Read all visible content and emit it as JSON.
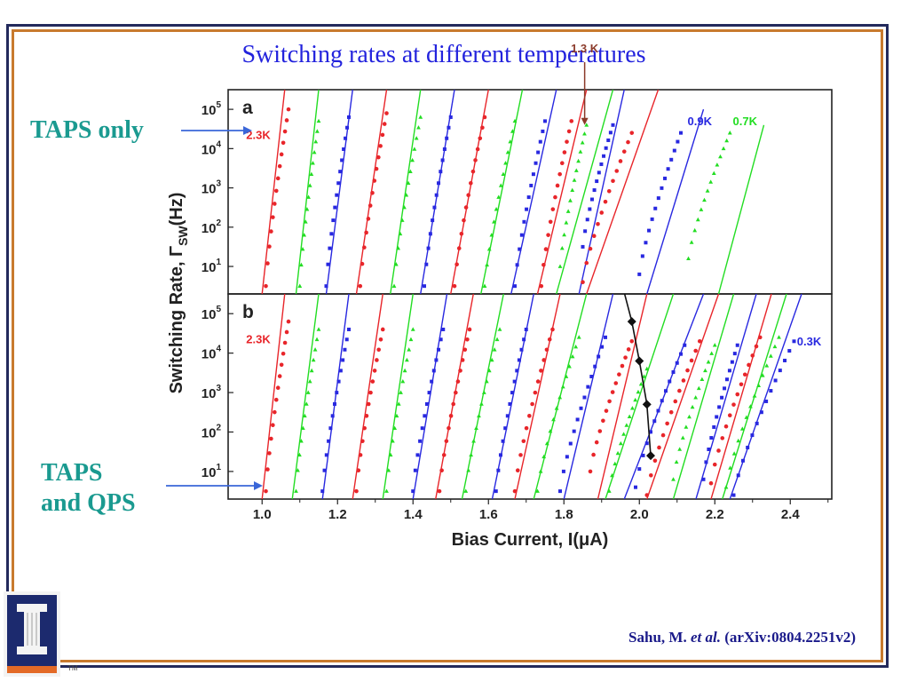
{
  "slide": {
    "title": "Switching rates at different temperatures",
    "taps_only": "TAPS only",
    "taps_qps_line1": "TAPS",
    "taps_qps_line2": "and QPS",
    "citation_author": "Sahu, M. ",
    "citation_etal": "et al.",
    "citation_ref": " (arXiv:0804.2251v2)",
    "tm": "TM"
  },
  "colors": {
    "red": "#e8252a",
    "green": "#22dd22",
    "blue": "#2828e0",
    "accent": "#2323dd",
    "teal": "#1a9a90"
  },
  "chart_data": {
    "type": "scatter",
    "xlabel": "Bias Current, I(μA)",
    "ylabel": "Switching Rate, Γ",
    "ylabel_sub": "SW",
    "ylabel_unit": "(Hz)",
    "xlim": [
      0.91,
      2.51
    ],
    "ylim_log10": [
      0.3,
      5.5
    ],
    "x_ticks": [
      "1.0",
      "1.2",
      "1.4",
      "1.6",
      "1.8",
      "2.0",
      "2.2",
      "2.4"
    ],
    "y_ticks": [
      {
        "base": "10",
        "exp": "1"
      },
      {
        "base": "10",
        "exp": "2"
      },
      {
        "base": "10",
        "exp": "3"
      },
      {
        "base": "10",
        "exp": "4"
      },
      {
        "base": "10",
        "exp": "5"
      }
    ],
    "panels": [
      {
        "label": "a",
        "annotations": [
          {
            "text": "2.3K",
            "color": "red",
            "x": 0.99,
            "logy": 4.25
          },
          {
            "text": "1.3 K",
            "color": "brown",
            "x": 1.855,
            "logy": 6.45
          },
          {
            "text": "0.9K",
            "color": "blue",
            "x": 2.16,
            "logy": 4.6
          },
          {
            "text": "0.7K",
            "color": "green",
            "x": 2.28,
            "logy": 4.6
          }
        ],
        "arrow_1_3K": {
          "x": 1.855,
          "logy_from": 6.2,
          "logy_to": 4.6
        },
        "curves": [
          {
            "color": "red",
            "data": [
              [
                1.01,
                0.5
              ],
              [
                1.07,
                5.0
              ]
            ],
            "fit": [
              [
                1.0,
                0.3
              ],
              [
                1.06,
                5.5
              ]
            ]
          },
          {
            "color": "green",
            "data": [
              [
                1.1,
                0.5
              ],
              [
                1.15,
                4.7
              ]
            ],
            "fit": [
              [
                1.09,
                0.3
              ],
              [
                1.15,
                5.5
              ]
            ]
          },
          {
            "color": "blue",
            "data": [
              [
                1.17,
                0.5
              ],
              [
                1.23,
                4.8
              ]
            ],
            "fit": [
              [
                1.17,
                0.3
              ],
              [
                1.24,
                5.5
              ]
            ]
          },
          {
            "color": "red",
            "data": [
              [
                1.26,
                0.5
              ],
              [
                1.33,
                4.9
              ]
            ],
            "fit": [
              [
                1.25,
                0.3
              ],
              [
                1.33,
                5.5
              ]
            ]
          },
          {
            "color": "green",
            "data": [
              [
                1.35,
                0.5
              ],
              [
                1.42,
                4.8
              ]
            ],
            "fit": [
              [
                1.34,
                0.3
              ],
              [
                1.42,
                5.5
              ]
            ]
          },
          {
            "color": "blue",
            "data": [
              [
                1.43,
                0.5
              ],
              [
                1.5,
                4.8
              ]
            ],
            "fit": [
              [
                1.42,
                0.3
              ],
              [
                1.51,
                5.5
              ]
            ]
          },
          {
            "color": "red",
            "data": [
              [
                1.51,
                0.5
              ],
              [
                1.59,
                4.8
              ]
            ],
            "fit": [
              [
                1.5,
                0.3
              ],
              [
                1.6,
                5.5
              ]
            ]
          },
          {
            "color": "green",
            "data": [
              [
                1.59,
                0.5
              ],
              [
                1.67,
                4.7
              ]
            ],
            "fit": [
              [
                1.58,
                0.3
              ],
              [
                1.69,
                5.5
              ]
            ]
          },
          {
            "color": "blue",
            "data": [
              [
                1.67,
                0.5
              ],
              [
                1.75,
                4.7
              ]
            ],
            "fit": [
              [
                1.66,
                0.3
              ],
              [
                1.78,
                5.5
              ]
            ]
          },
          {
            "color": "red",
            "data": [
              [
                1.74,
                0.5
              ],
              [
                1.82,
                4.7
              ]
            ],
            "fit": [
              [
                1.73,
                0.3
              ],
              [
                1.86,
                5.5
              ]
            ]
          },
          {
            "color": "green",
            "data": [
              [
                1.79,
                1.0
              ],
              [
                1.86,
                4.6
              ]
            ],
            "fit": [
              [
                1.78,
                0.3
              ],
              [
                1.93,
                5.5
              ]
            ]
          },
          {
            "color": "blue",
            "data": [
              [
                1.85,
                1.5
              ],
              [
                1.93,
                4.6
              ]
            ],
            "fit": [
              [
                1.84,
                0.3
              ],
              [
                1.96,
                5.5
              ]
            ]
          },
          {
            "color": "red",
            "data": [
              [
                1.85,
                0.6
              ],
              [
                1.98,
                4.4
              ]
            ],
            "fit": [
              [
                1.86,
                0.3
              ],
              [
                2.05,
                5.5
              ]
            ]
          },
          {
            "color": "blue",
            "data": [
              [
                2.0,
                0.8
              ],
              [
                2.11,
                4.4
              ]
            ],
            "fit": [
              [
                2.02,
                0.3
              ],
              [
                2.17,
                5.0
              ]
            ]
          },
          {
            "color": "green",
            "data": [
              [
                2.13,
                1.2
              ],
              [
                2.24,
                4.4
              ]
            ],
            "fit": [
              [
                2.21,
                0.3
              ],
              [
                2.33,
                4.6
              ]
            ]
          }
        ]
      },
      {
        "label": "b",
        "annotations": [
          {
            "text": "2.3K",
            "color": "red",
            "x": 0.99,
            "logy": 4.25
          },
          {
            "text": "0.3K",
            "color": "blue",
            "x": 2.45,
            "logy": 4.2
          }
        ],
        "black_curve": [
          [
            1.95,
            5.9
          ],
          [
            1.98,
            4.8
          ],
          [
            2.0,
            3.8
          ],
          [
            2.02,
            2.7
          ],
          [
            2.03,
            1.4
          ]
        ],
        "curves": [
          {
            "color": "red",
            "data": [
              [
                1.01,
                0.5
              ],
              [
                1.07,
                4.8
              ]
            ],
            "fit": [
              [
                1.0,
                0.3
              ],
              [
                1.06,
                5.5
              ]
            ]
          },
          {
            "color": "green",
            "data": [
              [
                1.09,
                0.5
              ],
              [
                1.15,
                4.6
              ]
            ],
            "fit": [
              [
                1.08,
                0.3
              ],
              [
                1.15,
                5.5
              ]
            ]
          },
          {
            "color": "blue",
            "data": [
              [
                1.16,
                0.5
              ],
              [
                1.23,
                4.6
              ]
            ],
            "fit": [
              [
                1.16,
                0.3
              ],
              [
                1.23,
                5.5
              ]
            ]
          },
          {
            "color": "red",
            "data": [
              [
                1.25,
                0.5
              ],
              [
                1.32,
                4.6
              ]
            ],
            "fit": [
              [
                1.24,
                0.3
              ],
              [
                1.32,
                5.5
              ]
            ]
          },
          {
            "color": "green",
            "data": [
              [
                1.33,
                0.5
              ],
              [
                1.4,
                4.6
              ]
            ],
            "fit": [
              [
                1.32,
                0.3
              ],
              [
                1.4,
                5.5
              ]
            ]
          },
          {
            "color": "blue",
            "data": [
              [
                1.4,
                0.5
              ],
              [
                1.48,
                4.6
              ]
            ],
            "fit": [
              [
                1.4,
                0.3
              ],
              [
                1.49,
                5.5
              ]
            ]
          },
          {
            "color": "red",
            "data": [
              [
                1.47,
                0.5
              ],
              [
                1.55,
                4.6
              ]
            ],
            "fit": [
              [
                1.46,
                0.3
              ],
              [
                1.56,
                5.5
              ]
            ]
          },
          {
            "color": "green",
            "data": [
              [
                1.54,
                0.5
              ],
              [
                1.63,
                4.6
              ]
            ],
            "fit": [
              [
                1.53,
                0.3
              ],
              [
                1.64,
                5.5
              ]
            ]
          },
          {
            "color": "blue",
            "data": [
              [
                1.62,
                0.5
              ],
              [
                1.7,
                4.6
              ]
            ],
            "fit": [
              [
                1.61,
                0.3
              ],
              [
                1.72,
                5.5
              ]
            ]
          },
          {
            "color": "red",
            "data": [
              [
                1.67,
                0.5
              ],
              [
                1.77,
                4.6
              ]
            ],
            "fit": [
              [
                1.67,
                0.3
              ],
              [
                1.79,
                5.5
              ]
            ]
          },
          {
            "color": "green",
            "data": [
              [
                1.73,
                0.5
              ],
              [
                1.84,
                4.4
              ]
            ],
            "fit": [
              [
                1.72,
                0.3
              ],
              [
                1.86,
                5.5
              ]
            ]
          },
          {
            "color": "blue",
            "data": [
              [
                1.79,
                0.5
              ],
              [
                1.91,
                4.4
              ]
            ],
            "fit": [
              [
                1.8,
                0.3
              ],
              [
                1.93,
                5.5
              ]
            ]
          },
          {
            "color": "red",
            "data": [
              [
                1.87,
                1.0
              ],
              [
                1.98,
                4.3
              ]
            ],
            "fit": [
              [
                1.89,
                0.3
              ],
              [
                2.02,
                5.5
              ]
            ]
          },
          {
            "color": "green",
            "data": [
              [
                1.92,
                0.5
              ],
              [
                2.02,
                3.6
              ]
            ],
            "fit": [
              [
                1.91,
                0.3
              ],
              [
                2.09,
                5.5
              ]
            ]
          },
          {
            "color": "blue",
            "data": [
              [
                1.99,
                0.6
              ],
              [
                2.12,
                4.2
              ]
            ],
            "fit": [
              [
                1.96,
                0.3
              ],
              [
                2.17,
                5.5
              ]
            ]
          },
          {
            "color": "red",
            "data": [
              [
                2.02,
                0.4
              ],
              [
                2.16,
                4.3
              ]
            ],
            "fit": [
              [
                2.02,
                0.3
              ],
              [
                2.21,
                5.5
              ]
            ]
          },
          {
            "color": "green",
            "data": [
              [
                2.09,
                0.8
              ],
              [
                2.2,
                4.2
              ]
            ],
            "fit": [
              [
                2.09,
                0.3
              ],
              [
                2.25,
                5.5
              ]
            ]
          },
          {
            "color": "blue",
            "data": [
              [
                2.17,
                0.8
              ],
              [
                2.26,
                4.2
              ]
            ],
            "fit": [
              [
                2.15,
                0.3
              ],
              [
                2.31,
                5.5
              ]
            ]
          },
          {
            "color": "red",
            "data": [
              [
                2.19,
                0.7
              ],
              [
                2.32,
                4.4
              ]
            ],
            "fit": [
              [
                2.19,
                0.3
              ],
              [
                2.35,
                5.5
              ]
            ]
          },
          {
            "color": "green",
            "data": [
              [
                2.23,
                0.6
              ],
              [
                2.37,
                4.4
              ]
            ],
            "fit": [
              [
                2.22,
                0.3
              ],
              [
                2.39,
                5.5
              ]
            ]
          },
          {
            "color": "blue",
            "data": [
              [
                2.25,
                0.4
              ],
              [
                2.41,
                4.3
              ]
            ],
            "fit": [
              [
                2.24,
                0.3
              ],
              [
                2.43,
                5.5
              ]
            ]
          }
        ]
      }
    ]
  }
}
